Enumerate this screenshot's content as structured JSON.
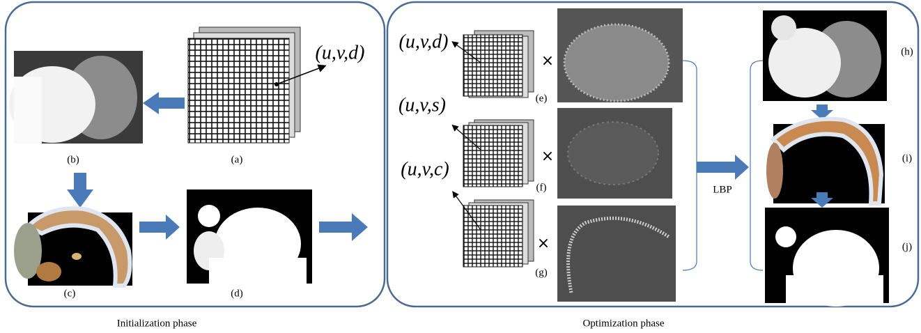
{
  "initialization": {
    "caption": "Initialization phase",
    "tuple": "(u,v,d)",
    "panels": [
      {
        "label": "(a)"
      },
      {
        "label": "(b)"
      },
      {
        "label": "(c)"
      },
      {
        "label": "(d)"
      }
    ]
  },
  "optimization": {
    "caption": "Optimization phase",
    "method": "LBP",
    "rows": [
      {
        "tuple": "(u,v,d)",
        "operator": "×",
        "label": "(e)"
      },
      {
        "tuple": "(u,v,s)",
        "operator": "×",
        "label": "(f)"
      },
      {
        "tuple": "(u,v,c)",
        "operator": "×",
        "label": "(g)"
      }
    ],
    "outputs": [
      {
        "label": "(h)"
      },
      {
        "label": "(i)"
      },
      {
        "label": "(j)"
      }
    ]
  }
}
